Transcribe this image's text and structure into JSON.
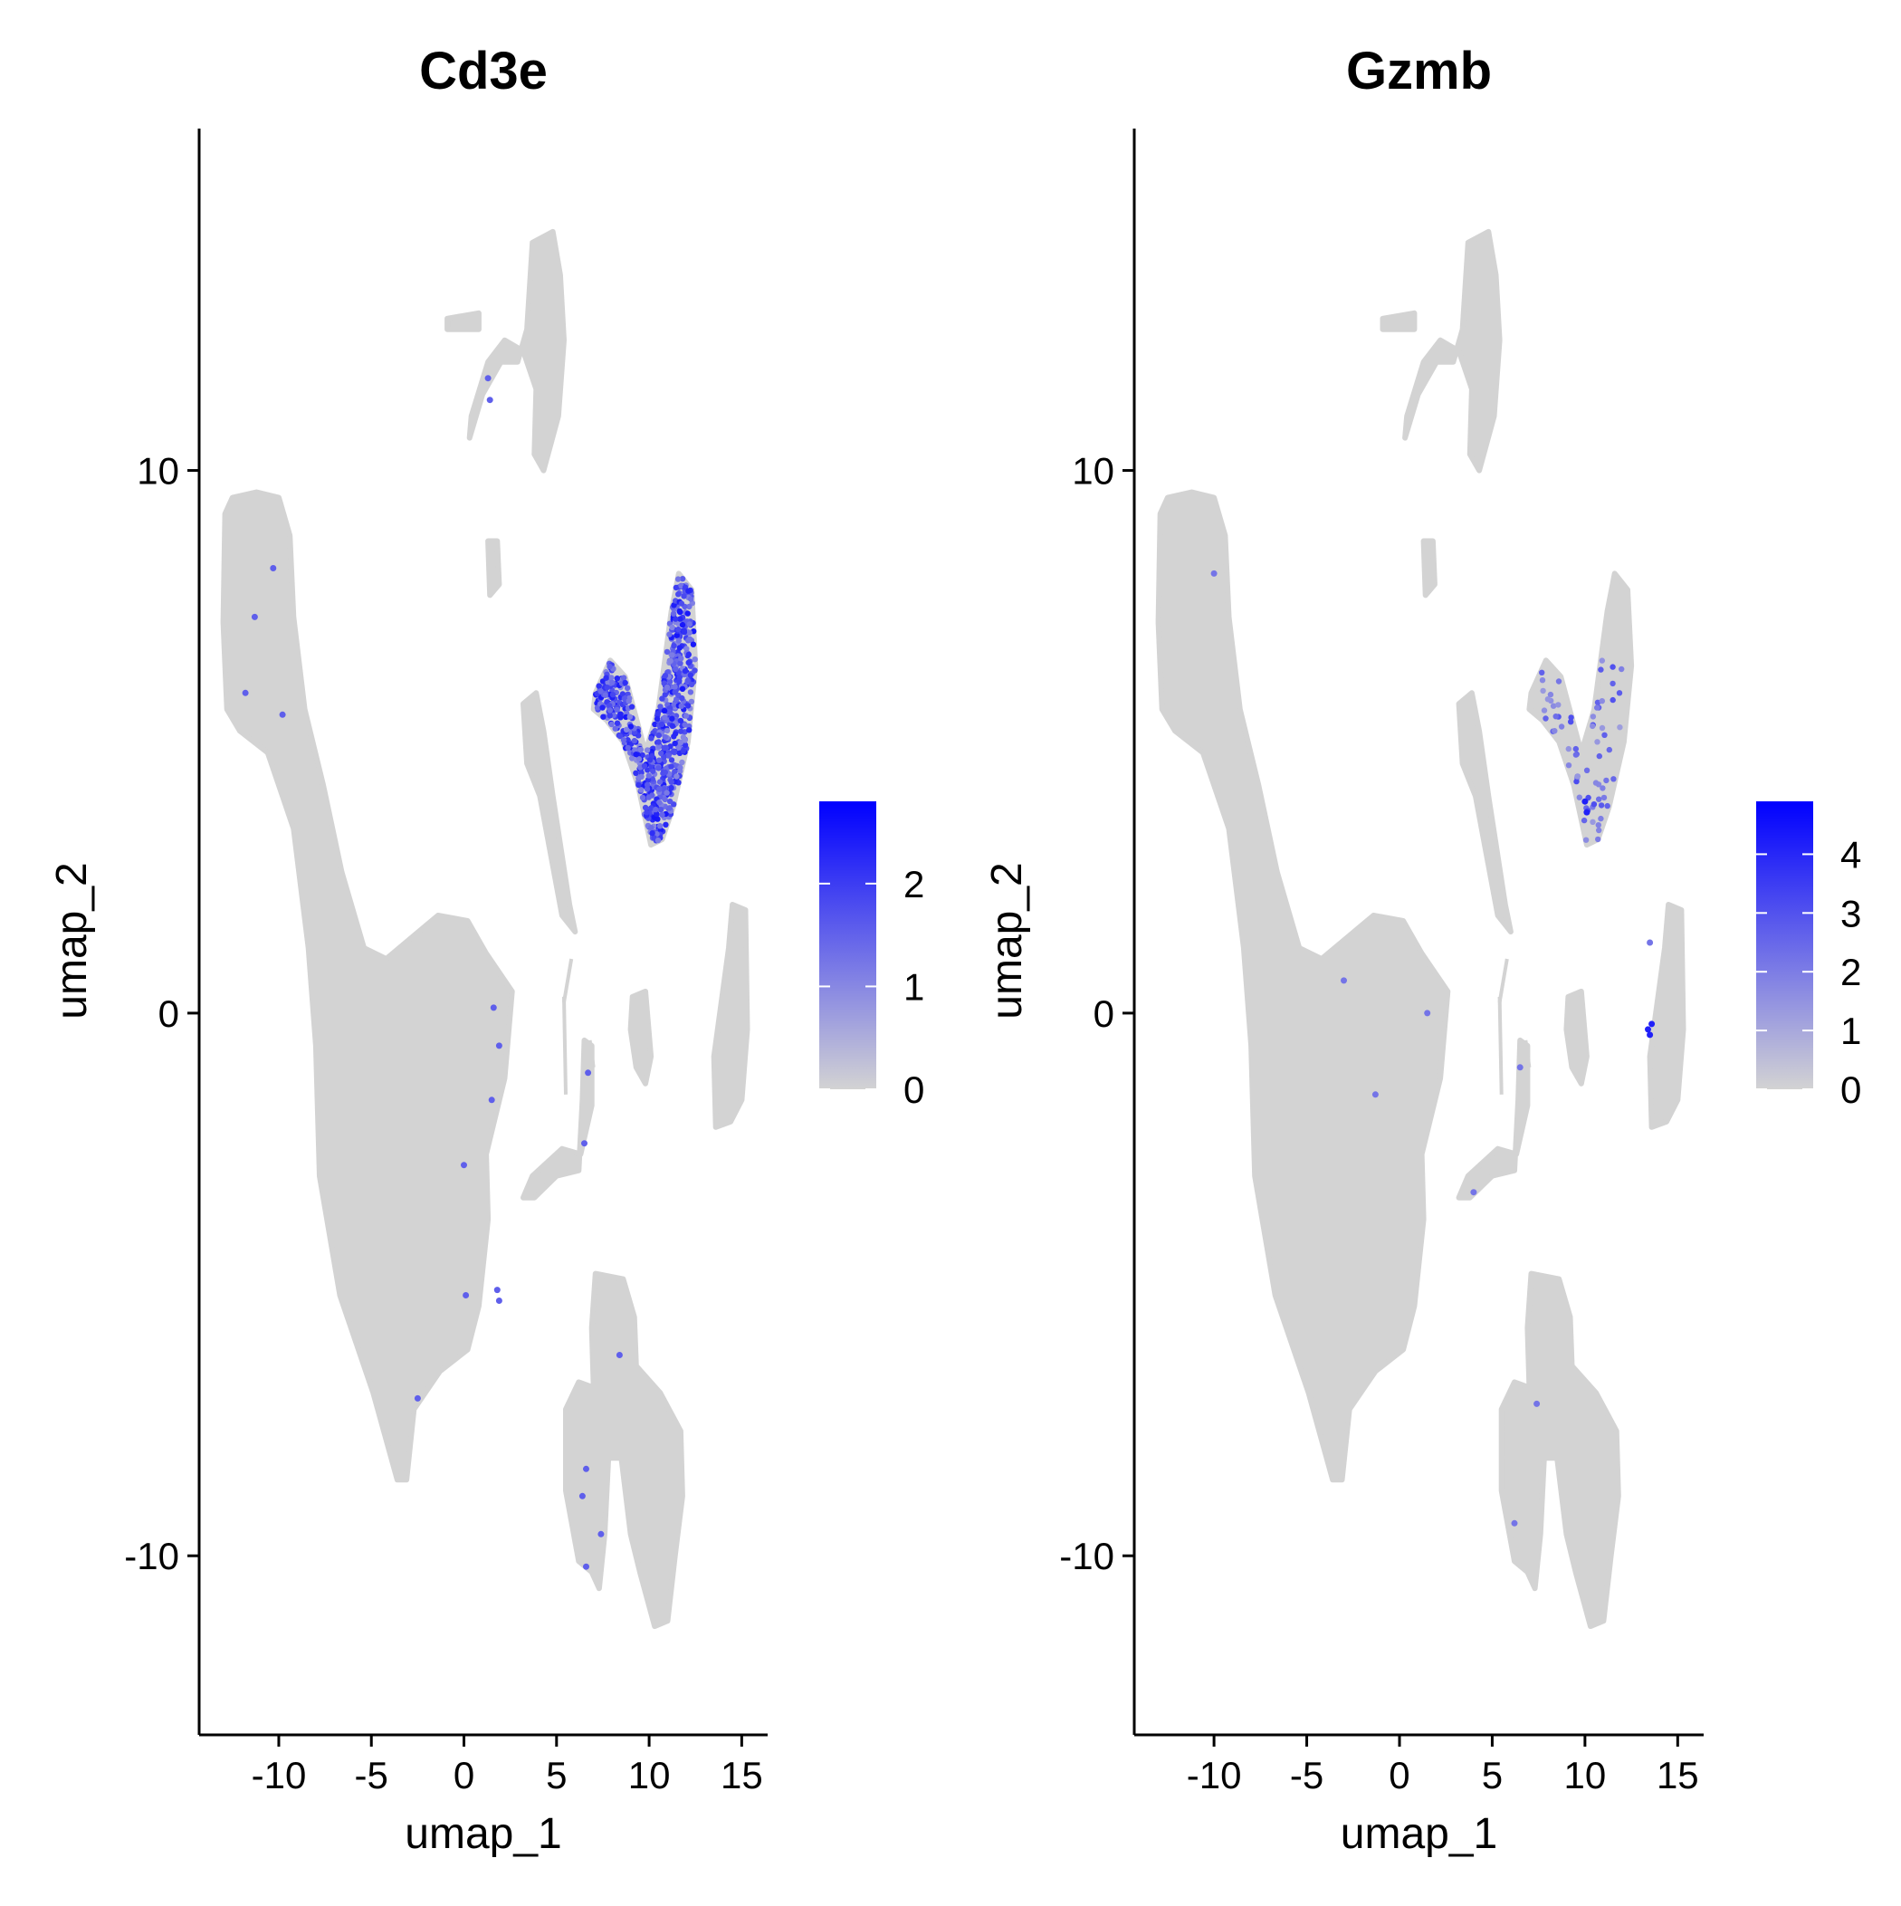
{
  "chart_data": [
    {
      "type": "scatter",
      "title": "Cd3e",
      "xlabel": "umap_1",
      "ylabel": "umap_2",
      "xlim": [
        -14.3,
        16.4
      ],
      "ylim": [
        -13.3,
        16.3
      ],
      "x_ticks": [
        -10,
        -5,
        0,
        5,
        10,
        15
      ],
      "x_tick_labels": [
        "-10",
        "-5",
        "0",
        "5",
        "10",
        "15"
      ],
      "y_ticks": [
        -10,
        0,
        10
      ],
      "y_tick_labels": [
        "-10",
        "0",
        "10"
      ],
      "grid": false,
      "legend": {
        "placement": "right",
        "type": "colorbar",
        "min": 0,
        "max": 2.8,
        "ticks": [
          0,
          1,
          2
        ],
        "tick_labels": [
          "0",
          "1",
          "2"
        ],
        "low_color": "#d3d3d3",
        "high_color": "#0000ff"
      },
      "highlight": "t_cells"
    },
    {
      "type": "scatter",
      "title": "Gzmb",
      "xlabel": "umap_1",
      "ylabel": "umap_2",
      "xlim": [
        -14.3,
        16.4
      ],
      "ylim": [
        -13.3,
        16.3
      ],
      "x_ticks": [
        -10,
        -5,
        0,
        5,
        10,
        15
      ],
      "x_tick_labels": [
        "-10",
        "-5",
        "0",
        "5",
        "10",
        "15"
      ],
      "y_ticks": [
        -10,
        0,
        10
      ],
      "y_tick_labels": [
        "-10",
        "0",
        "10"
      ],
      "grid": false,
      "legend": {
        "placement": "right",
        "type": "colorbar",
        "min": 0,
        "max": 4.9,
        "ticks": [
          0,
          1,
          2,
          3,
          4
        ],
        "tick_labels": [
          "0",
          "1",
          "2",
          "3",
          "4"
        ],
        "low_color": "#d3d3d3",
        "high_color": "#0000ff"
      },
      "highlight": "sparse"
    }
  ]
}
